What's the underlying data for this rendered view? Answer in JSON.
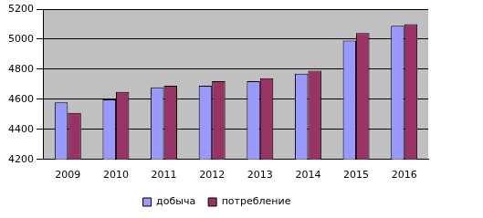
{
  "chart_data": {
    "type": "bar",
    "categories": [
      "2009",
      "2010",
      "2011",
      "2012",
      "2013",
      "2014",
      "2015",
      "2016"
    ],
    "series": [
      {
        "name": "добыча",
        "color": "#9999ff",
        "values": [
          4580,
          4600,
          4680,
          4690,
          4720,
          4770,
          4990,
          5090
        ]
      },
      {
        "name": "потребление",
        "color": "#993366",
        "values": [
          4510,
          4650,
          4690,
          4720,
          4740,
          4790,
          5040,
          5100
        ]
      }
    ],
    "ylim": [
      4200,
      5200
    ],
    "yticks": [
      4200,
      4400,
      4600,
      4800,
      5000,
      5200
    ],
    "grid": true,
    "legend": "bottom"
  }
}
